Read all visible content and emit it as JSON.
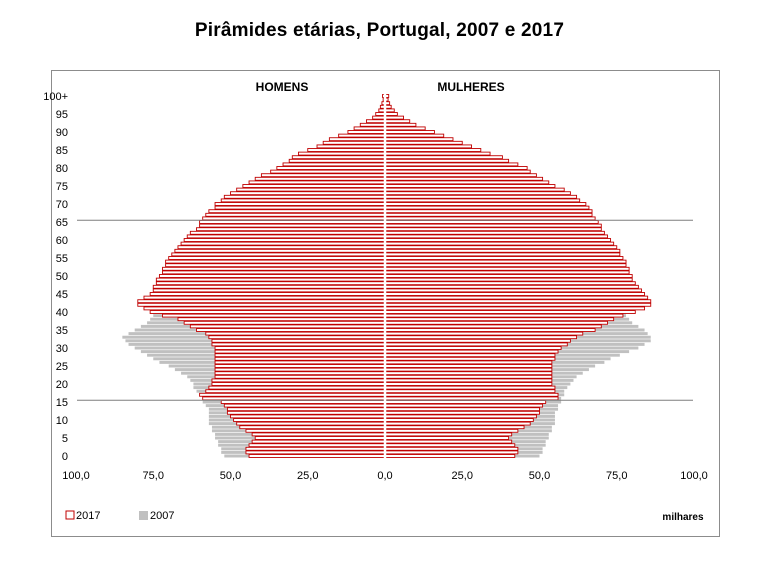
{
  "chart_data": {
    "type": "bar",
    "subtype": "population-pyramid",
    "title": "Pirâmides etárias, Portugal, 2007 e 2017",
    "left_label": "HOMENS",
    "right_label": "MULHERES",
    "unit": "milhares",
    "x_ticks": [
      "100,0",
      "75,0",
      "50,0",
      "25,0",
      "0,0",
      "25,0",
      "50,0",
      "75,0",
      "100,0"
    ],
    "xlim": [
      -100,
      100
    ],
    "y_ticks": [
      "0",
      "5",
      "10",
      "15",
      "20",
      "25",
      "30",
      "35",
      "40",
      "45",
      "50",
      "55",
      "60",
      "65",
      "70",
      "75",
      "80",
      "85",
      "90",
      "95",
      "100+"
    ],
    "ages": [
      0,
      1,
      2,
      3,
      4,
      5,
      6,
      7,
      8,
      9,
      10,
      11,
      12,
      13,
      14,
      15,
      16,
      17,
      18,
      19,
      20,
      21,
      22,
      23,
      24,
      25,
      26,
      27,
      28,
      29,
      30,
      31,
      32,
      33,
      34,
      35,
      36,
      37,
      38,
      39,
      40,
      41,
      42,
      43,
      44,
      45,
      46,
      47,
      48,
      49,
      50,
      51,
      52,
      53,
      54,
      55,
      56,
      57,
      58,
      59,
      60,
      61,
      62,
      63,
      64,
      65,
      66,
      67,
      68,
      69,
      70,
      71,
      72,
      73,
      74,
      75,
      76,
      77,
      78,
      79,
      80,
      81,
      82,
      83,
      84,
      85,
      86,
      87,
      88,
      89,
      90,
      91,
      92,
      93,
      94,
      95,
      96,
      97,
      98,
      99,
      100
    ],
    "reference_lines_at_age": [
      15,
      65
    ],
    "series": [
      {
        "name": "2017",
        "style": "outline",
        "color": "#c00000",
        "men": [
          44,
          45,
          45,
          44,
          43,
          42,
          43,
          45,
          47,
          48,
          49,
          50,
          51,
          51,
          52,
          53,
          59,
          60,
          58,
          57,
          56,
          56,
          55,
          55,
          55,
          55,
          55,
          55,
          55,
          55,
          55,
          56,
          56,
          57,
          58,
          61,
          63,
          65,
          67,
          72,
          76,
          78,
          80,
          80,
          78,
          76,
          75,
          75,
          74,
          74,
          73,
          72,
          72,
          71,
          71,
          70,
          69,
          68,
          67,
          66,
          65,
          64,
          63,
          61,
          60,
          60,
          59,
          58,
          57,
          55,
          55,
          53,
          52,
          50,
          48,
          46,
          44,
          42,
          40,
          37,
          35,
          33,
          31,
          30,
          28,
          25,
          22,
          20,
          18,
          15,
          12,
          10,
          8,
          6,
          4,
          3,
          2,
          1.5,
          1,
          0.6,
          0.8
        ],
        "women": [
          42,
          43,
          43,
          42,
          41,
          40,
          41,
          43,
          45,
          47,
          48,
          49,
          50,
          50,
          51,
          52,
          56,
          56,
          55,
          55,
          54,
          54,
          54,
          54,
          54,
          54,
          54,
          55,
          55,
          56,
          57,
          59,
          60,
          62,
          64,
          68,
          70,
          72,
          74,
          77,
          81,
          84,
          86,
          86,
          85,
          84,
          83,
          82,
          81,
          80,
          80,
          79,
          79,
          78,
          78,
          77,
          76,
          76,
          75,
          74,
          73,
          72,
          71,
          70,
          70,
          69,
          68,
          67,
          67,
          66,
          65,
          63,
          62,
          60,
          58,
          55,
          53,
          51,
          49,
          47,
          46,
          43,
          40,
          38,
          34,
          31,
          28,
          25,
          22,
          19,
          16,
          13,
          10,
          8,
          6,
          4,
          3,
          2,
          1.5,
          1,
          1.2
        ]
      },
      {
        "name": "2007",
        "style": "filled",
        "color": "#c0c0c0",
        "men": [
          52,
          53,
          53,
          54,
          54,
          55,
          55,
          56,
          56,
          57,
          57,
          57,
          57,
          57,
          58,
          59,
          59,
          60,
          61,
          62,
          62,
          63,
          64,
          66,
          68,
          70,
          73,
          75,
          77,
          79,
          81,
          83,
          84,
          85,
          83,
          81,
          79,
          77,
          76,
          75,
          74,
          73,
          72,
          71,
          71,
          70,
          69,
          68,
          67,
          66,
          65,
          64,
          63,
          62,
          61,
          60,
          60,
          59,
          58,
          58,
          57,
          56,
          55,
          54,
          53,
          53,
          52,
          50,
          49,
          48,
          47,
          45,
          43,
          41,
          39,
          37,
          35,
          33,
          31,
          29,
          27,
          25,
          23,
          21,
          19,
          17,
          15,
          13,
          11,
          9,
          7,
          5,
          4,
          3,
          2,
          1.2,
          0.8,
          0.5,
          0.3,
          0.2,
          0.3
        ],
        "women": [
          50,
          51,
          51,
          52,
          52,
          53,
          53,
          54,
          54,
          55,
          55,
          55,
          55,
          56,
          56,
          57,
          57,
          58,
          58,
          59,
          60,
          61,
          62,
          64,
          66,
          68,
          71,
          73,
          76,
          79,
          82,
          84,
          86,
          86,
          85,
          84,
          82,
          80,
          79,
          78,
          77,
          76,
          75,
          75,
          74,
          74,
          73,
          72,
          72,
          71,
          71,
          70,
          70,
          69,
          68,
          68,
          67,
          66,
          66,
          65,
          64,
          63,
          63,
          62,
          61,
          60,
          59,
          58,
          57,
          56,
          55,
          53,
          52,
          50,
          49,
          47,
          45,
          43,
          41,
          39,
          37,
          35,
          33,
          31,
          29,
          27,
          25,
          23,
          21,
          19,
          16,
          13,
          10,
          8,
          6,
          4,
          3,
          2,
          1.2,
          0.8,
          0.5
        ]
      }
    ],
    "legend": {
      "placement": "bottom-left",
      "entries": [
        "2017",
        "2007"
      ]
    }
  }
}
